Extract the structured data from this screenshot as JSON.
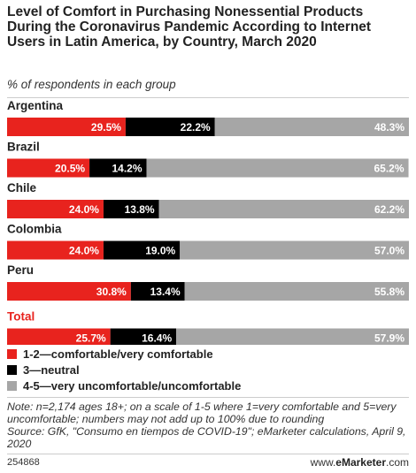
{
  "header": {
    "title": "Level of Comfort in Purchasing Nonessential Products During the Coronavirus Pandemic According to Internet Users in Latin America, by Country, March 2020",
    "subtitle": "% of respondents in each group"
  },
  "colors": {
    "comfortable": "#e8231e",
    "neutral": "#000000",
    "uncomfortable": "#a6a6a6",
    "total_label": "#e8231e"
  },
  "chart_data": {
    "type": "bar",
    "orientation": "horizontal",
    "stacked": true,
    "categories": [
      "Argentina",
      "Brazil",
      "Chile",
      "Colombia",
      "Peru",
      "Total"
    ],
    "series": [
      {
        "name": "1-2—comfortable/very comfortable",
        "values": [
          29.5,
          20.5,
          24.0,
          24.0,
          30.8,
          25.7
        ]
      },
      {
        "name": "3—neutral",
        "values": [
          22.2,
          14.2,
          13.8,
          19.0,
          13.4,
          16.4
        ]
      },
      {
        "name": "4-5—very uncomfortable/uncomfortable",
        "values": [
          48.3,
          65.2,
          62.2,
          57.0,
          55.8,
          57.9
        ]
      }
    ],
    "value_labels": [
      [
        "29.5%",
        "22.2%",
        "48.3%"
      ],
      [
        "20.5%",
        "14.2%",
        "65.2%"
      ],
      [
        "24.0%",
        "13.8%",
        "62.2%"
      ],
      [
        "24.0%",
        "19.0%",
        "57.0%"
      ],
      [
        "30.8%",
        "13.4%",
        "55.8%"
      ],
      [
        "25.7%",
        "16.4%",
        "57.9%"
      ]
    ],
    "legend_position": "bottom-left",
    "xlim": [
      0,
      100
    ]
  },
  "legend": {
    "items": [
      {
        "label": "1-2—comfortable/very comfortable"
      },
      {
        "label": "3—neutral"
      },
      {
        "label": "4-5—very uncomfortable/uncomfortable"
      }
    ]
  },
  "footer": {
    "note": "Note: n=2,174 ages 18+; on a scale of 1-5 where 1=very comfortable and 5=very uncomfortable; numbers may not add up to 100% due to rounding",
    "source": "Source: GfK, \"Consumo en tiempos de COVID-19\"; eMarketer calculations, April 9, 2020",
    "chart_id": "254868",
    "brand_prefix": "www.",
    "brand_name": "eMarketer",
    "brand_suffix": ".com"
  }
}
